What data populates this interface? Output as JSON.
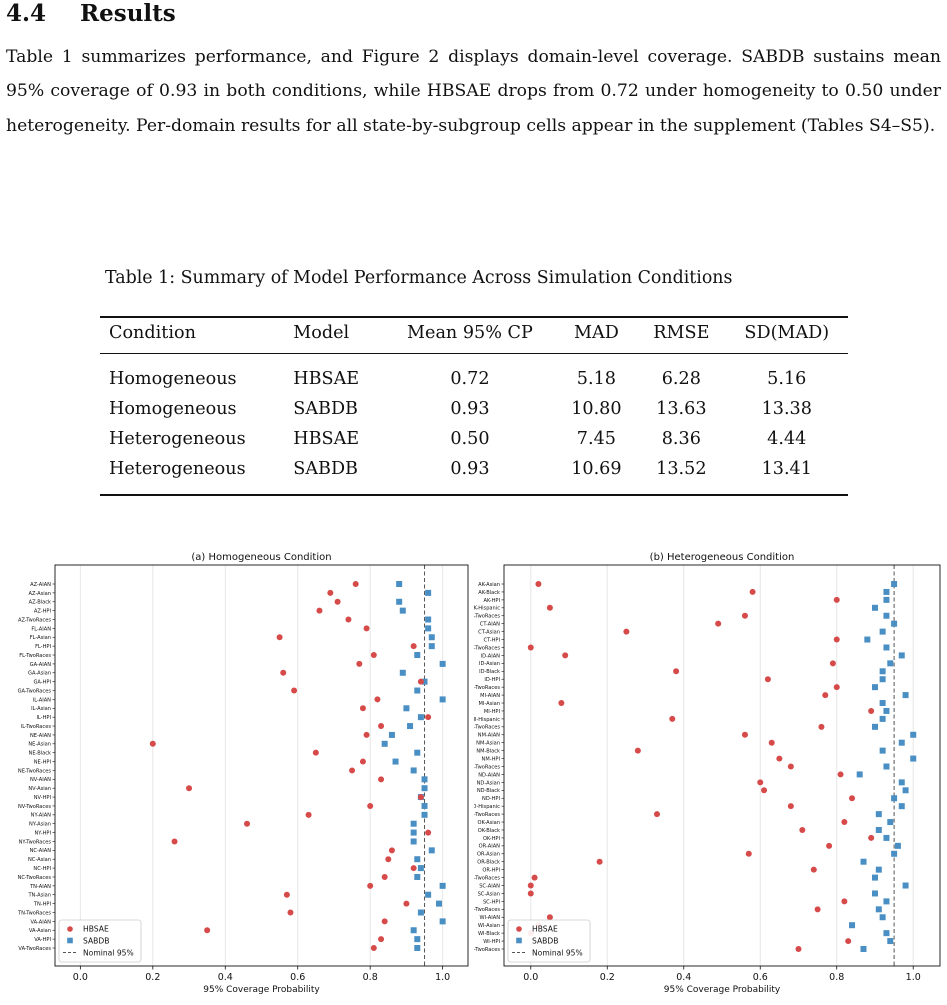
{
  "section": {
    "number": "4.4",
    "title": "Results",
    "paragraph": "Table 1 summarizes performance, and Figure 2 displays domain-level coverage. SABDB sustains mean 95% coverage of 0.93 in both conditions, while HBSAE drops from 0.72 under homogeneity to 0.50 under heterogeneity. Per-domain results for all state-by-subgroup cells appear in the supplement (Tables S4–S5)."
  },
  "table": {
    "caption": "Table 1: Summary of Model Performance Across Simulation Conditions",
    "headers": [
      "Condition",
      "Model",
      "Mean 95% CP",
      "MAD",
      "RMSE",
      "SD(MAD)"
    ],
    "rows": [
      [
        "Homogeneous",
        "HBSAE",
        "0.72",
        "5.18",
        "6.28",
        "5.16"
      ],
      [
        "Homogeneous",
        "SABDB",
        "0.93",
        "10.80",
        "13.63",
        "13.38"
      ],
      [
        "Heterogeneous",
        "HBSAE",
        "0.50",
        "7.45",
        "8.36",
        "4.44"
      ],
      [
        "Heterogeneous",
        "SABDB",
        "0.93",
        "10.69",
        "13.52",
        "13.41"
      ]
    ]
  },
  "colors": {
    "hbsae": "#d64a4a",
    "sabdb": "#4a8fc4",
    "nominal": "#555555"
  },
  "chart_data": [
    {
      "type": "scatter",
      "title": "(a) Homogeneous Condition",
      "xlabel": "95% Coverage Probability",
      "xlim": [
        -0.07,
        1.07
      ],
      "xticks": [
        "0.0",
        "0.2",
        "0.4",
        "0.6",
        "0.8",
        "1.0"
      ],
      "nominal": 0.95,
      "grid": "vertical",
      "legend_loc": "lower-left",
      "legend": [
        "HBSAE",
        "SABDB",
        "Nominal 95%"
      ],
      "categories": [
        "AZ-AIAN",
        "AZ-Asian",
        "AZ-Black",
        "AZ-HPI",
        "AZ-TwoRaces",
        "FL-AIAN",
        "FL-Asian",
        "FL-HPI",
        "FL-TwoRaces",
        "GA-AIAN",
        "GA-Asian",
        "GA-HPI",
        "GA-TwoRaces",
        "IL-AIAN",
        "IL-Asian",
        "IL-HPI",
        "IL-TwoRaces",
        "NE-AIAN",
        "NE-Asian",
        "NE-Black",
        "NE-HPI",
        "NE-TwoRaces",
        "NV-AIAN",
        "NV-Asian",
        "NV-HPI",
        "NV-TwoRaces",
        "NY-AIAN",
        "NY-Asian",
        "NY-HPI",
        "NY-TwoRaces",
        "NC-AIAN",
        "NC-Asian",
        "NC-HPI",
        "NC-TwoRaces",
        "TN-AIAN",
        "TN-Asian",
        "TN-HPI",
        "TN-TwoRaces",
        "VA-AIAN",
        "VA-Asian",
        "VA-HPI",
        "VA-TwoRaces"
      ],
      "series": [
        {
          "name": "HBSAE",
          "marker": "circle",
          "values": [
            0.76,
            0.69,
            0.71,
            0.66,
            0.74,
            0.79,
            0.55,
            0.92,
            0.81,
            0.77,
            0.56,
            0.94,
            0.59,
            0.82,
            0.78,
            0.96,
            0.83,
            0.79,
            0.2,
            0.65,
            0.78,
            0.75,
            0.83,
            0.3,
            0.94,
            0.8,
            0.63,
            0.46,
            0.96,
            0.26,
            0.86,
            0.85,
            0.92,
            0.84,
            0.8,
            0.57,
            0.9,
            0.58,
            0.84,
            0.35,
            0.83,
            0.81
          ]
        },
        {
          "name": "SABDB",
          "marker": "square",
          "values": [
            0.88,
            0.96,
            0.88,
            0.89,
            0.96,
            0.96,
            0.97,
            0.97,
            0.93,
            1.0,
            0.89,
            0.95,
            0.93,
            1.0,
            0.9,
            0.94,
            0.91,
            0.86,
            0.84,
            0.93,
            0.87,
            0.92,
            0.95,
            0.95,
            0.94,
            0.95,
            0.95,
            0.92,
            0.92,
            0.92,
            0.97,
            0.93,
            0.94,
            0.93,
            1.0,
            0.96,
            0.99,
            0.94,
            1.0,
            0.92,
            0.93,
            0.93
          ]
        }
      ]
    },
    {
      "type": "scatter",
      "title": "(b) Heterogeneous Condition",
      "xlabel": "95% Coverage Probability",
      "xlim": [
        -0.07,
        1.07
      ],
      "xticks": [
        "0.0",
        "0.2",
        "0.4",
        "0.6",
        "0.8",
        "1.0"
      ],
      "nominal": 0.95,
      "grid": "vertical",
      "legend_loc": "lower-left",
      "legend": [
        "HBSAE",
        "SABDB",
        "Nominal 95%"
      ],
      "categories": [
        "AK-Asian",
        "AK-Black",
        "AK-HPI",
        "AK-Hispanic",
        "AK-TwoRaces",
        "CT-AIAN",
        "CT-Asian",
        "CT-HPI",
        "CT-TwoRaces",
        "ID-AIAN",
        "ID-Asian",
        "ID-Black",
        "ID-HPI",
        "ID-TwoRaces",
        "MI-AIAN",
        "MI-Asian",
        "MI-HPI",
        "MI-Hispanic",
        "MI-TwoRaces",
        "NM-AIAN",
        "NM-Asian",
        "NM-Black",
        "NM-HPI",
        "NM-TwoRaces",
        "ND-AIAN",
        "ND-Asian",
        "ND-Black",
        "ND-HPI",
        "ND-Hispanic",
        "ND-TwoRaces",
        "OK-Asian",
        "OK-Black",
        "OK-HPI",
        "OR-AIAN",
        "OR-Asian",
        "OR-Black",
        "OR-HPI",
        "OR-TwoRaces",
        "SC-AIAN",
        "SC-Asian",
        "SC-HPI",
        "SC-TwoRaces",
        "WI-AIAN",
        "WI-Asian",
        "WI-Black",
        "WI-HPI",
        "WI-TwoRaces"
      ],
      "series": [
        {
          "name": "HBSAE",
          "marker": "circle",
          "values": [
            0.02,
            0.58,
            0.8,
            0.05,
            0.56,
            0.49,
            0.25,
            0.8,
            0.0,
            0.09,
            0.79,
            0.38,
            0.62,
            0.8,
            0.77,
            0.08,
            0.89,
            0.37,
            0.76,
            0.56,
            0.63,
            0.28,
            0.65,
            0.68,
            0.81,
            0.6,
            0.61,
            0.84,
            0.68,
            0.33,
            0.82,
            0.71,
            0.89,
            0.78,
            0.57,
            0.18,
            0.74,
            0.01,
            0.0,
            0.0,
            0.82,
            0.75,
            0.05,
            0.02,
            0.0,
            0.83,
            0.7
          ]
        },
        {
          "name": "SABDB",
          "marker": "square",
          "values": [
            0.95,
            0.93,
            0.93,
            0.9,
            0.93,
            0.95,
            0.92,
            0.88,
            0.93,
            0.97,
            0.94,
            0.92,
            0.92,
            0.9,
            0.98,
            0.92,
            0.93,
            0.92,
            0.9,
            1.0,
            0.97,
            0.92,
            1.0,
            0.93,
            0.86,
            0.97,
            0.98,
            0.95,
            0.97,
            0.91,
            0.94,
            0.91,
            0.93,
            0.96,
            0.95,
            0.87,
            0.91,
            0.9,
            0.98,
            0.9,
            0.93,
            0.91,
            0.92,
            0.84,
            0.93,
            0.94,
            0.87
          ]
        }
      ]
    }
  ]
}
